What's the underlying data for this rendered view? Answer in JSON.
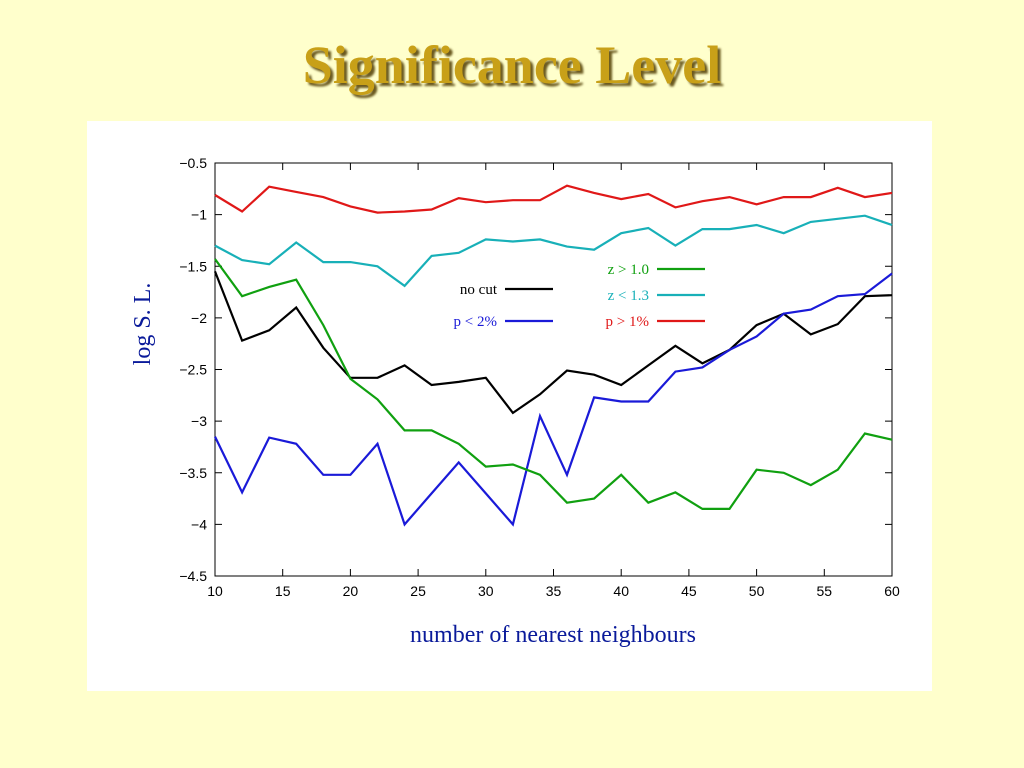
{
  "slide": {
    "title": "Significance Level"
  },
  "chart_data": {
    "type": "line",
    "xlabel": "number of nearest neighbours",
    "ylabel": "log S. L.",
    "xlim": [
      10,
      60
    ],
    "ylim": [
      -4.5,
      -0.5
    ],
    "xticks": [
      10,
      15,
      20,
      25,
      30,
      35,
      40,
      45,
      50,
      55,
      60
    ],
    "xtick_labels": [
      "10",
      "15",
      "20",
      "25",
      "30",
      "35",
      "40",
      "45",
      "50",
      "55",
      "60"
    ],
    "yticks": [
      -0.5,
      -1,
      -1.5,
      -2,
      -2.5,
      -3,
      -3.5,
      -4,
      -4.5
    ],
    "ytick_labels": [
      "−0.5",
      "−1",
      "−1.5",
      "−2",
      "−2.5",
      "−3",
      "−3.5",
      "−4",
      "−4.5"
    ],
    "grid": false,
    "x": [
      10,
      12,
      14,
      16,
      18,
      20,
      22,
      24,
      26,
      28,
      30,
      32,
      34,
      36,
      38,
      40,
      42,
      44,
      46,
      48,
      50,
      52,
      54,
      56,
      58,
      60
    ],
    "series": [
      {
        "name": "no cut",
        "color": "#000000",
        "values": [
          -1.55,
          -2.22,
          -2.12,
          -1.9,
          -2.29,
          -2.58,
          -2.58,
          -2.46,
          -2.65,
          -2.62,
          -2.58,
          -2.92,
          -2.74,
          -2.51,
          -2.55,
          -2.65,
          -2.46,
          -2.27,
          -2.44,
          -2.31,
          -2.07,
          -1.96,
          -2.16,
          -2.06,
          -1.79,
          -1.78
        ]
      },
      {
        "name": "p < 2%",
        "color": "#1a1ad8",
        "values": [
          -3.15,
          -3.69,
          -3.16,
          -3.22,
          -3.52,
          -3.52,
          -3.22,
          -4.0,
          -3.7,
          -3.4,
          -3.7,
          -4.0,
          -2.95,
          -3.52,
          -2.77,
          -2.81,
          -2.81,
          -2.52,
          -2.48,
          -2.31,
          -2.18,
          -1.96,
          -1.92,
          -1.79,
          -1.77,
          -1.57
        ]
      },
      {
        "name": "z > 1.0",
        "color": "#10a010",
        "values": [
          -1.43,
          -1.79,
          -1.7,
          -1.63,
          -2.07,
          -2.59,
          -2.79,
          -3.09,
          -3.09,
          -3.22,
          -3.44,
          -3.42,
          -3.52,
          -3.79,
          -3.75,
          -3.52,
          -3.79,
          -3.69,
          -3.85,
          -3.85,
          -3.47,
          -3.5,
          -3.62,
          -3.47,
          -3.12,
          -3.18
        ]
      },
      {
        "name": "z < 1.3",
        "color": "#18b0b8",
        "values": [
          -1.3,
          -1.44,
          -1.48,
          -1.27,
          -1.46,
          -1.46,
          -1.5,
          -1.69,
          -1.4,
          -1.37,
          -1.24,
          -1.26,
          -1.24,
          -1.31,
          -1.34,
          -1.18,
          -1.13,
          -1.3,
          -1.14,
          -1.14,
          -1.1,
          -1.18,
          -1.07,
          -1.04,
          -1.01,
          -1.1
        ]
      },
      {
        "name": "p > 1%",
        "color": "#e01818",
        "values": [
          -0.81,
          -0.97,
          -0.73,
          -0.78,
          -0.83,
          -0.92,
          -0.98,
          -0.97,
          -0.95,
          -0.84,
          -0.88,
          -0.86,
          -0.86,
          -0.72,
          -0.79,
          -0.85,
          -0.8,
          -0.93,
          -0.87,
          -0.83,
          -0.9,
          -0.83,
          -0.83,
          -0.74,
          -0.83,
          -0.79
        ]
      }
    ],
    "legend": [
      {
        "label": "no cut",
        "color": "#000000",
        "text_color": "#000000",
        "position": "left-top"
      },
      {
        "label": "p < 2%",
        "color": "#1a1ad8",
        "text_color": "#1a1ad8",
        "position": "left-bottom"
      },
      {
        "label": "z > 1.0",
        "color": "#10a010",
        "text_color": "#10a010",
        "position": "right-top"
      },
      {
        "label": "z < 1.3",
        "color": "#18b0b8",
        "text_color": "#18b0b8",
        "position": "right-middle"
      },
      {
        "label": "p > 1%",
        "color": "#e01818",
        "text_color": "#e01818",
        "position": "right-bottom"
      }
    ]
  }
}
